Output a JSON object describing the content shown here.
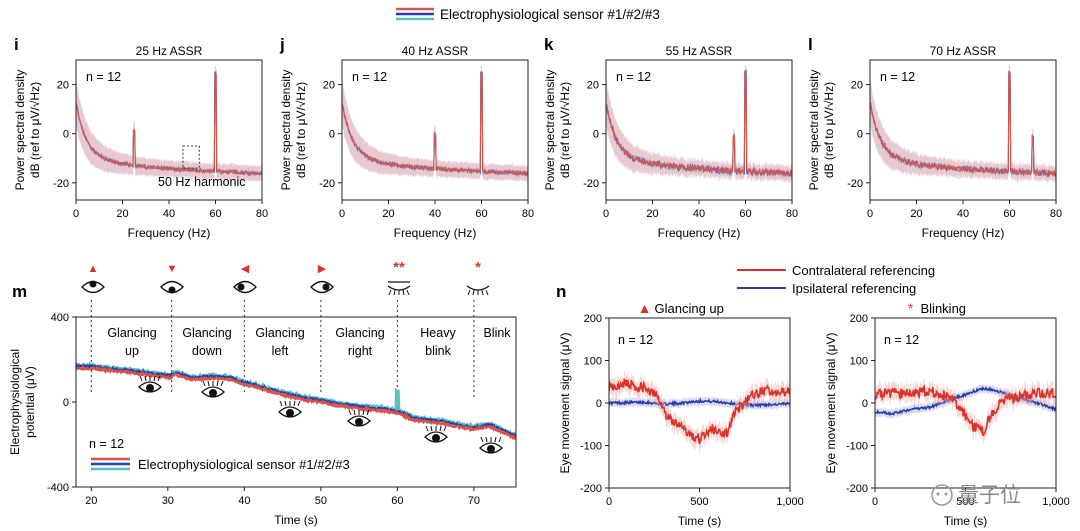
{
  "legend": {
    "top": "Electrophysiological sensor #1/#2/#3",
    "m": "Electrophysiological sensor #1/#2/#3",
    "n_contra": "Contralateral referencing",
    "n_ipsi": "Ipsilateral referencing"
  },
  "colors": {
    "sensor1": "#d9534a",
    "sensor2": "#2b3ea8",
    "sensor3": "#5cc0c0",
    "sensor1_band": "#f0a8a2",
    "sensor2_band": "#aab0e0",
    "contra": "#d8342c",
    "ipsi": "#2a3ca8",
    "marker": "#d8342c"
  },
  "psd": [
    {
      "label": "i",
      "title": "25 Hz ASSR",
      "n": "n = 12",
      "annotation": "50 Hz harmonic",
      "peaks": [
        25,
        60
      ],
      "noise": 0.9
    },
    {
      "label": "j",
      "title": "40 Hz ASSR",
      "n": "n = 12",
      "annotation": "",
      "peaks": [
        40,
        60
      ],
      "noise": 1.0
    },
    {
      "label": "k",
      "title": "55 Hz ASSR",
      "n": "n = 12",
      "annotation": "",
      "peaks": [
        55,
        60
      ],
      "noise": 1.6
    },
    {
      "label": "l",
      "title": "70 Hz ASSR",
      "n": "n = 12",
      "annotation": "",
      "peaks": [
        60,
        70
      ],
      "noise": 1.4
    }
  ],
  "psd_axes": {
    "xlabel": "Frequency (Hz)",
    "ylabel1": "Power spectral density",
    "ylabel2": "dB (ref to μV/√Hz)",
    "xticks": [
      0,
      20,
      40,
      60,
      80
    ],
    "yticks": [
      20,
      0,
      -20
    ],
    "xlim": [
      0,
      80
    ],
    "ylim": [
      -27,
      30
    ]
  },
  "m": {
    "label": "m",
    "n": "n = 12",
    "ylabel1": "Electrophysiological",
    "ylabel2": "potential (μV)",
    "xlabel": "Time (s)",
    "xticks": [
      20,
      30,
      40,
      50,
      60,
      70
    ],
    "yticks": [
      400,
      0,
      -400
    ],
    "xlim": [
      18,
      75.5
    ],
    "ylim": [
      -400,
      400
    ],
    "segments": [
      {
        "line1": "Glancing",
        "line2": "up",
        "marker": "▲",
        "t": 20
      },
      {
        "line1": "Glancing",
        "line2": "down",
        "marker": "▼",
        "t": 30.5
      },
      {
        "line1": "Glancing",
        "line2": "left",
        "marker": "◀",
        "t": 40
      },
      {
        "line1": "Glancing",
        "line2": "right",
        "marker": "▶",
        "t": 50
      },
      {
        "line1": "Heavy",
        "line2": "blink",
        "marker": "**",
        "t": 60
      },
      {
        "line1": "Blink",
        "line2": "",
        "marker": "*",
        "t": 70
      }
    ],
    "curve": [
      [
        18,
        165
      ],
      [
        20,
        165
      ],
      [
        22,
        155
      ],
      [
        25,
        145
      ],
      [
        28,
        130
      ],
      [
        30.3,
        120
      ],
      [
        31,
        135
      ],
      [
        33,
        110
      ],
      [
        36,
        118
      ],
      [
        38,
        112
      ],
      [
        40,
        90
      ],
      [
        43,
        60
      ],
      [
        46,
        30
      ],
      [
        48,
        15
      ],
      [
        50,
        5
      ],
      [
        52,
        -10
      ],
      [
        55,
        -25
      ],
      [
        58,
        -35
      ],
      [
        60,
        -45
      ],
      [
        61,
        -60
      ],
      [
        62,
        -78
      ],
      [
        64,
        -88
      ],
      [
        66,
        -95
      ],
      [
        68,
        -112
      ],
      [
        70,
        -122
      ],
      [
        72,
        -110
      ],
      [
        74,
        -140
      ],
      [
        75.5,
        -165
      ]
    ]
  },
  "n_panels": {
    "label": "n",
    "ylabel": "Eye movement signal (μV)",
    "xlabel": "Time (s)",
    "xticks_left": [
      "0",
      "500",
      "1,000"
    ],
    "xticks_right": [
      "0",
      "500",
      "1,000"
    ],
    "xtick_values": [
      0,
      500,
      1000
    ],
    "yticks": [
      200,
      100,
      0,
      -100,
      -200
    ],
    "xlim": [
      0,
      1000
    ],
    "ylim": [
      -200,
      200
    ],
    "left": {
      "title": "Glancing up",
      "marker": "▲",
      "n": "n = 12",
      "contra": [
        [
          0,
          40
        ],
        [
          100,
          45
        ],
        [
          200,
          35
        ],
        [
          270,
          20
        ],
        [
          320,
          -30
        ],
        [
          400,
          -60
        ],
        [
          450,
          -75
        ],
        [
          500,
          -85
        ],
        [
          560,
          -60
        ],
        [
          650,
          -70
        ],
        [
          700,
          -20
        ],
        [
          750,
          0
        ],
        [
          800,
          20
        ],
        [
          870,
          30
        ],
        [
          1000,
          25
        ]
      ],
      "ipsi": [
        [
          0,
          0
        ],
        [
          200,
          2
        ],
        [
          300,
          -3
        ],
        [
          400,
          0
        ],
        [
          500,
          5
        ],
        [
          600,
          3
        ],
        [
          700,
          -2
        ],
        [
          800,
          -5
        ],
        [
          1000,
          -2
        ]
      ]
    },
    "right": {
      "title": "Blinking",
      "marker": "*",
      "n": "n = 12",
      "contra": [
        [
          0,
          20
        ],
        [
          100,
          25
        ],
        [
          200,
          20
        ],
        [
          300,
          30
        ],
        [
          400,
          15
        ],
        [
          450,
          0
        ],
        [
          500,
          -30
        ],
        [
          550,
          -60
        ],
        [
          600,
          -65
        ],
        [
          640,
          -30
        ],
        [
          700,
          5
        ],
        [
          800,
          15
        ],
        [
          900,
          25
        ],
        [
          1000,
          20
        ]
      ],
      "ipsi": [
        [
          0,
          -20
        ],
        [
          100,
          -25
        ],
        [
          200,
          -15
        ],
        [
          300,
          -10
        ],
        [
          400,
          5
        ],
        [
          500,
          20
        ],
        [
          600,
          35
        ],
        [
          650,
          30
        ],
        [
          700,
          25
        ],
        [
          800,
          10
        ],
        [
          900,
          0
        ],
        [
          1000,
          -15
        ]
      ]
    }
  },
  "watermark": "量子位"
}
